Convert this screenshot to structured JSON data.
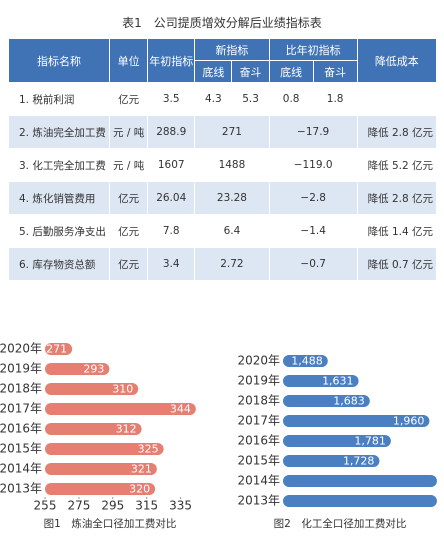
{
  "table": {
    "title": "表1　公司提质增效分解后业绩指标表",
    "header": [
      "指标名称",
      "单位",
      "年初指标",
      "新指标",
      "比年初指标",
      "降低成本"
    ],
    "subheader": [
      "底线",
      "奋斗",
      "底线",
      "奋斗"
    ],
    "rows": [
      {
        "name": "1. 税前利润",
        "unit": "亿元",
        "initial": "3.5",
        "new": [
          "4.3",
          "5.3"
        ],
        "change": [
          "0.8",
          "1.8"
        ]
      },
      {
        "name": "2. 炼油完全加工费",
        "unit": "元 / 吨",
        "initial": "288.9",
        "new": "271",
        "change": "−17.9",
        "reduction": "降低 2.8 亿元"
      },
      {
        "name": "3. 化工完全加工费",
        "unit": "元 / 吨",
        "initial": "1607",
        "new": "1488",
        "change": "−119.0",
        "reduction": "降低 5.2 亿元"
      },
      {
        "name": "4. 炼化销管费用",
        "unit": "亿元",
        "initial": "26.04",
        "new": "23.28",
        "change": "−2.8",
        "reduction": "降低 2.8 亿元"
      },
      {
        "name": "5. 后勤服务净支出",
        "unit": "亿元",
        "initial": "7.8",
        "new": "6.4",
        "change": "−1.4",
        "reduction": "降低 1.4 亿元"
      },
      {
        "name": "6. 库存物资总额",
        "unit": "亿元",
        "initial": "3.4",
        "new": "2.72",
        "change": "−0.7",
        "reduction": "降低 0.7 亿元"
      }
    ]
  },
  "chart_data": [
    {
      "type": "bar",
      "orientation": "horizontal",
      "title": "图1　炼油全口径加工费对比",
      "categories": [
        "2020年",
        "2019年",
        "2018年",
        "2017年",
        "2016年",
        "2015年",
        "2014年",
        "2013年"
      ],
      "values": [
        271,
        293,
        310,
        344,
        312,
        325,
        321,
        320
      ],
      "color": "#e47f72",
      "xlim": [
        255,
        350
      ],
      "xticks": [
        255,
        275,
        295,
        315,
        335
      ]
    },
    {
      "type": "bar",
      "orientation": "horizontal",
      "title": "图2　化工全口径加工费对比",
      "categories": [
        "2020年",
        "2019年",
        "2018年",
        "2017年",
        "2016年",
        "2015年",
        "2014年",
        "2013年"
      ],
      "values": [
        1488,
        1631,
        1683,
        1960,
        1781,
        1728,
        1995,
        1995
      ],
      "value_labels": [
        "1,488",
        "1,631",
        "1,683",
        "1,960",
        "1,781",
        "1,728",
        null,
        null
      ],
      "color": "#4a7fc1",
      "xlim": [
        1280,
        2000
      ]
    }
  ]
}
